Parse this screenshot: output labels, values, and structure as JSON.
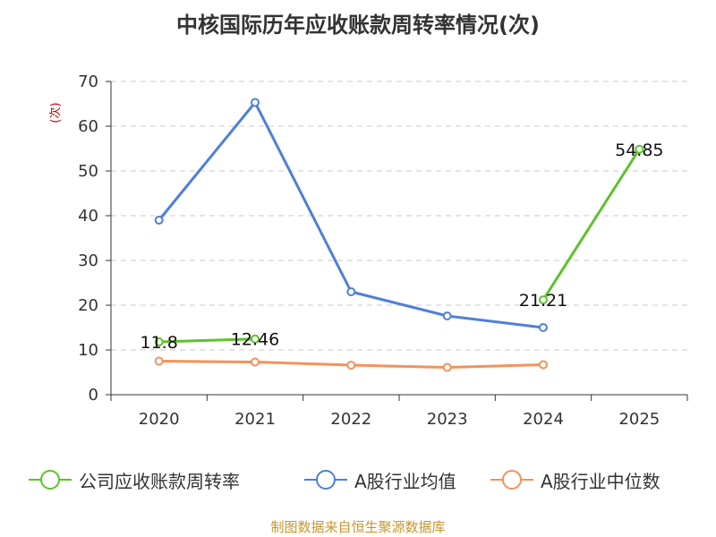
{
  "chart_data": {
    "type": "line",
    "title": "中核国际历年应收账款周转率情况(次)",
    "ylabel": "(次)",
    "xlabel": "",
    "categories": [
      "2020",
      "2021",
      "2022",
      "2023",
      "2024",
      "2025"
    ],
    "ylim": [
      0,
      70
    ],
    "yticks": [
      0,
      10,
      20,
      30,
      40,
      50,
      60,
      70
    ],
    "grid": "horizontal-dashed",
    "legend_position": "bottom",
    "series": [
      {
        "name": "公司应收账款周转率",
        "color": "#5cc22a",
        "values": [
          11.8,
          12.46,
          null,
          null,
          21.21,
          54.85
        ],
        "labels": [
          "11.8",
          "12.46",
          null,
          null,
          "21.21",
          "54.85"
        ]
      },
      {
        "name": "A股行业均值",
        "color": "#4f7fd9",
        "values": [
          39.0,
          65.3,
          23.0,
          17.6,
          15.0,
          null
        ]
      },
      {
        "name": "A股行业中位数",
        "color": "#f5915a",
        "values": [
          7.5,
          7.3,
          6.6,
          6.1,
          6.7,
          null
        ]
      }
    ]
  },
  "footer": {
    "source": "制图数据来自恒生聚源数据库"
  }
}
